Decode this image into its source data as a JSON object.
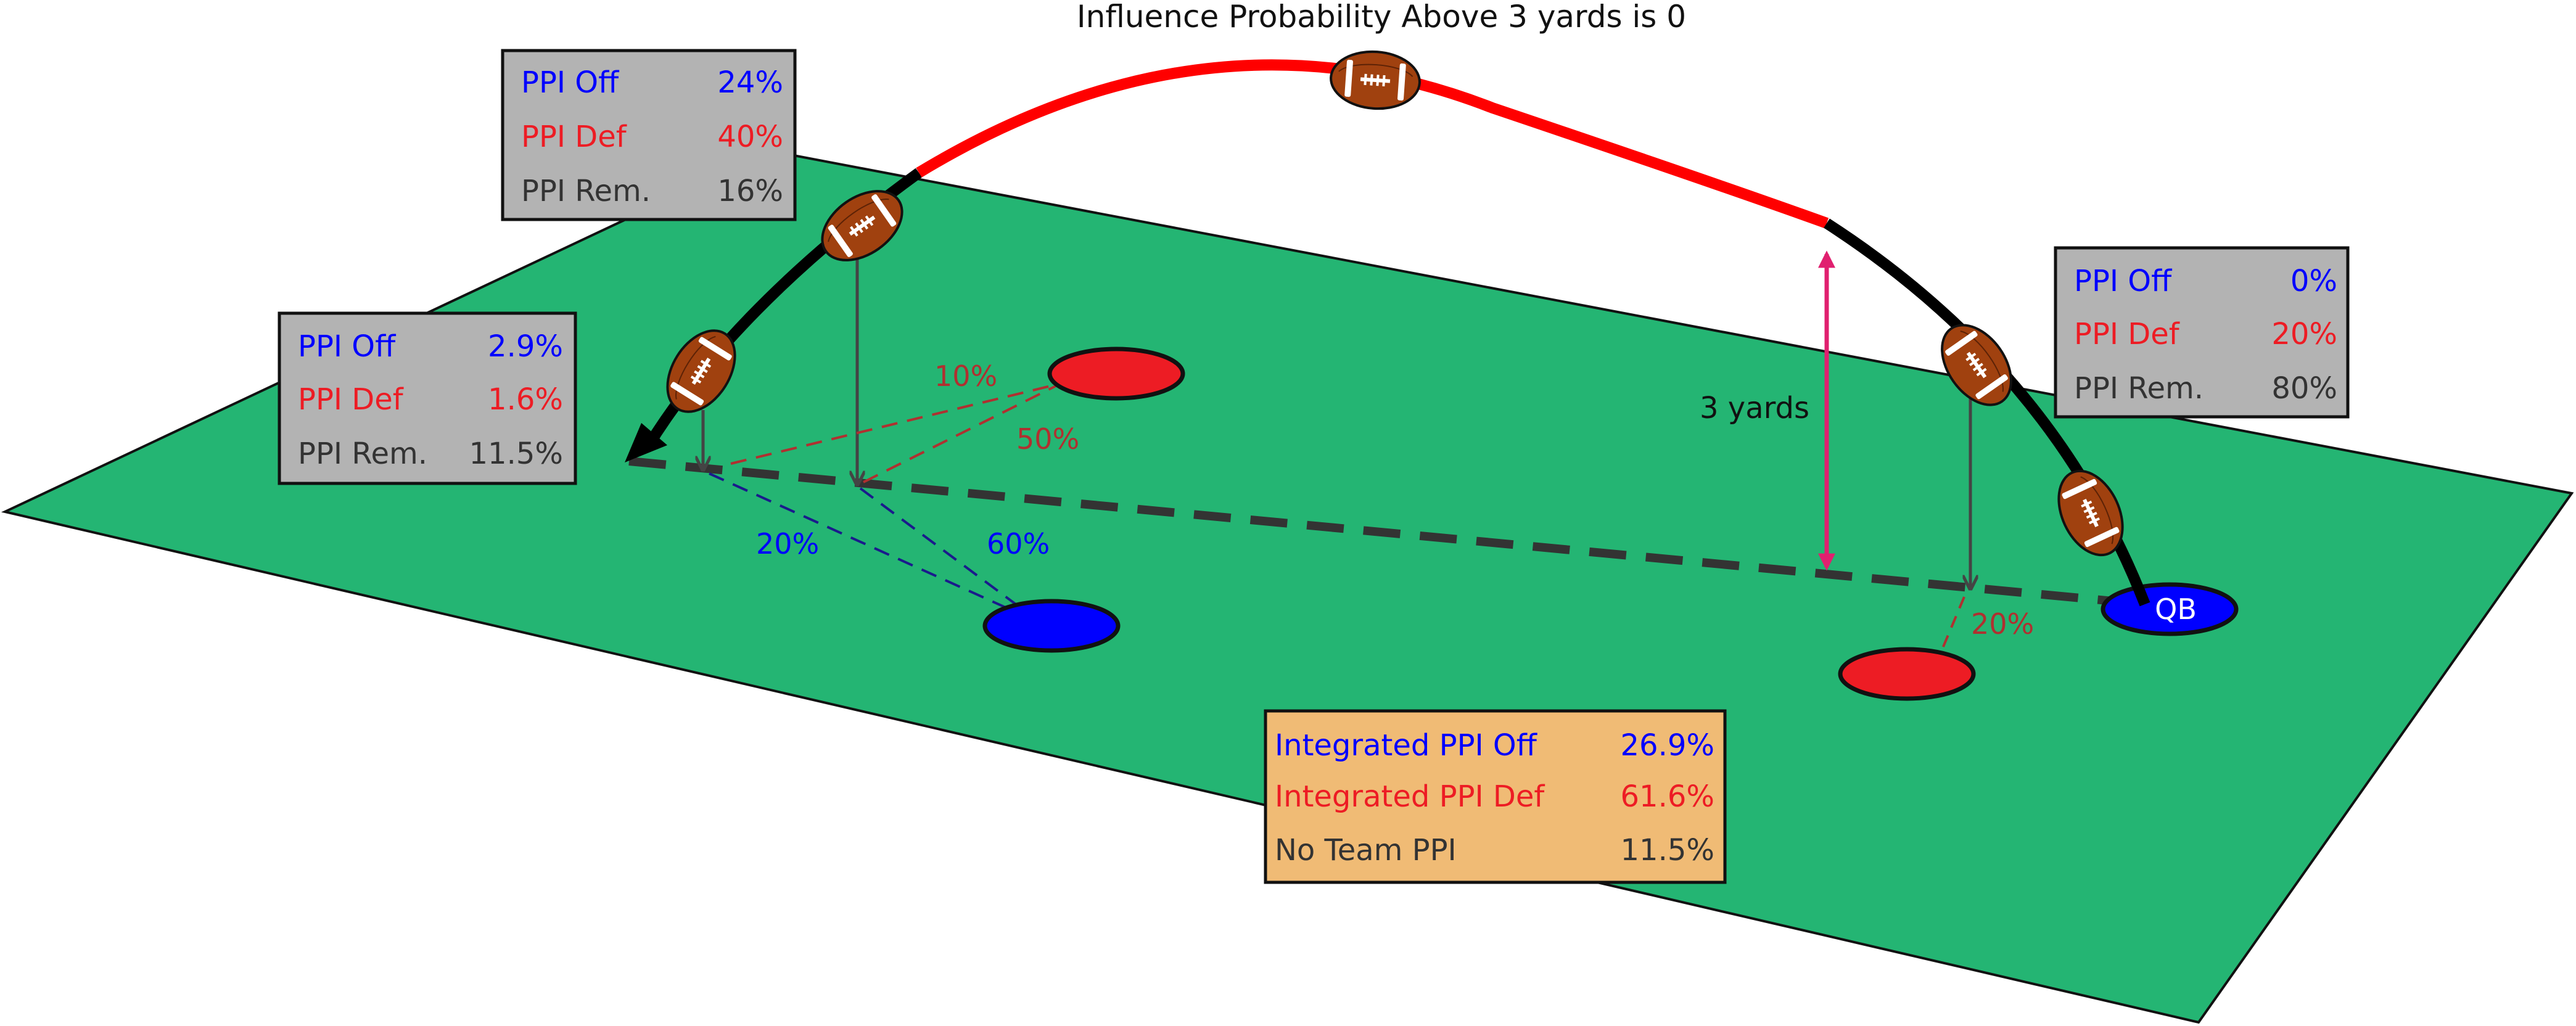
{
  "title": "Influence Probability Above 3 yards is 0",
  "colors": {
    "field": "#24B573",
    "offense": "#0000FF",
    "defense": "#ED1C24",
    "remainder": "#333333",
    "arc_high": "#FF0000",
    "arc_low": "#000000",
    "box_gray": "#B3B3B3",
    "box_orange": "#F0BB75",
    "measure": "#E0206F",
    "ball": "#A0410F"
  },
  "height_label": "3 yards",
  "qb_label": "QB",
  "boxes": {
    "top_left": {
      "rows": [
        {
          "label": "PPI Off",
          "value": "24%"
        },
        {
          "label": "PPI Def",
          "value": "40%"
        },
        {
          "label": "PPI Rem.",
          "value": "16%"
        }
      ]
    },
    "left": {
      "rows": [
        {
          "label": "PPI Off",
          "value": "2.9%"
        },
        {
          "label": "PPI Def",
          "value": "1.6%"
        },
        {
          "label": "PPI Rem.",
          "value": "11.5%"
        }
      ]
    },
    "right": {
      "rows": [
        {
          "label": "PPI Off",
          "value": "0%"
        },
        {
          "label": "PPI Def",
          "value": "20%"
        },
        {
          "label": "PPI Rem.",
          "value": "80%"
        }
      ]
    },
    "integrated": {
      "rows": [
        {
          "label": "Integrated PPI Off",
          "value": "26.9%"
        },
        {
          "label": "Integrated PPI Def",
          "value": "61.6%"
        },
        {
          "label": "No Team PPI",
          "value": "11.5%"
        }
      ]
    }
  },
  "distance_labels": {
    "def_10": "10%",
    "def_50": "50%",
    "off_20": "20%",
    "off_60": "60%",
    "def_right_20": "20%"
  }
}
